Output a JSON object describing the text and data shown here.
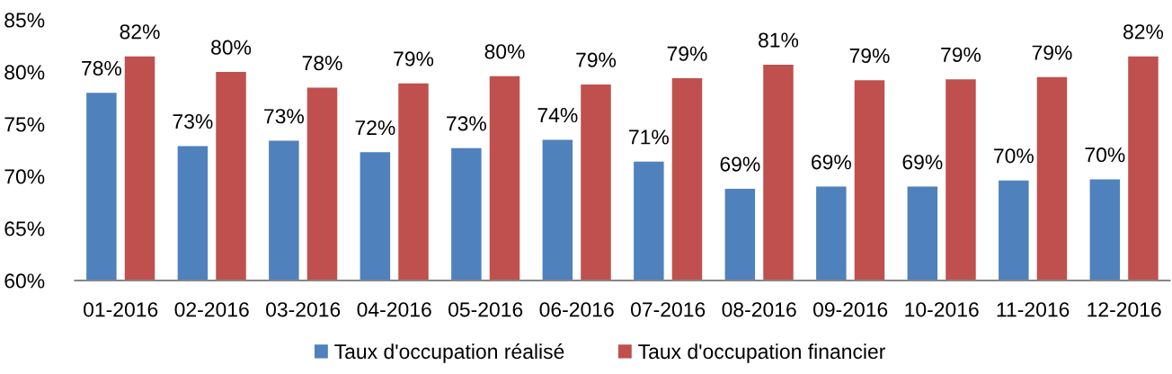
{
  "chart_data": {
    "type": "bar",
    "categories": [
      "01-2016",
      "02-2016",
      "03-2016",
      "04-2016",
      "05-2016",
      "06-2016",
      "07-2016",
      "08-2016",
      "09-2016",
      "10-2016",
      "11-2016",
      "12-2016"
    ],
    "series": [
      {
        "name": "Taux d'occupation réalisé",
        "color": "#4f81bd",
        "values": [
          78.0,
          72.9,
          73.4,
          72.3,
          72.7,
          73.5,
          71.4,
          68.8,
          69.0,
          69.0,
          69.6,
          69.7
        ],
        "value_labels": [
          "78%",
          "73%",
          "73%",
          "72%",
          "73%",
          "74%",
          "71%",
          "69%",
          "69%",
          "69%",
          "70%",
          "70%"
        ]
      },
      {
        "name": "Taux d'occupation financier",
        "color": "#c0504d",
        "values": [
          81.5,
          80.0,
          78.5,
          78.9,
          79.6,
          78.8,
          79.4,
          80.7,
          79.2,
          79.3,
          79.5,
          81.5
        ],
        "value_labels": [
          "82%",
          "80%",
          "78%",
          "79%",
          "80%",
          "79%",
          "79%",
          "81%",
          "79%",
          "79%",
          "79%",
          "82%"
        ]
      }
    ],
    "ylim": [
      60,
      85
    ],
    "yticks": [
      {
        "value": 60,
        "label": "60%"
      },
      {
        "value": 65,
        "label": "65%"
      },
      {
        "value": 70,
        "label": "70%"
      },
      {
        "value": 75,
        "label": "75%"
      },
      {
        "value": 80,
        "label": "80%"
      },
      {
        "value": 85,
        "label": "85%"
      }
    ],
    "legend": "bottom"
  }
}
